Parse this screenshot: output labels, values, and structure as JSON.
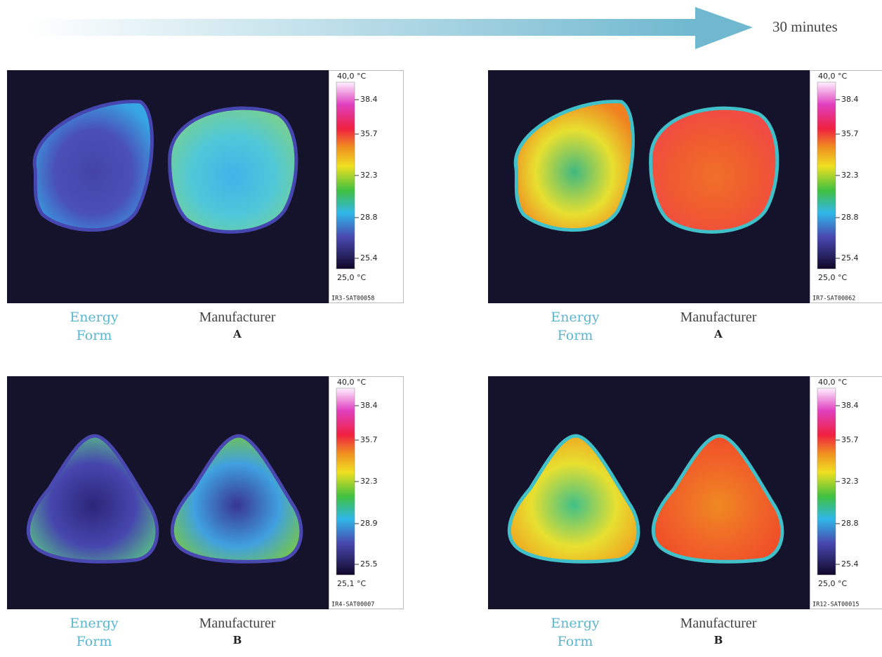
{
  "header": {
    "duration": "30 minutes"
  },
  "panels": [
    {
      "scale": {
        "max": "40,0 °C",
        "ticks": [
          "38.4",
          "35.7",
          "32.3",
          "28.8",
          "25.4"
        ],
        "min": "25,0 °C"
      },
      "image_id": "IR3-SAT00058",
      "left_label": [
        "Energy",
        "Form"
      ],
      "right_label": [
        "Manufacturer",
        "A"
      ]
    },
    {
      "scale": {
        "max": "40,0 °C",
        "ticks": [
          "38.4",
          "35.7",
          "32.3",
          "28.8",
          "25.4"
        ],
        "min": "25,0 °C"
      },
      "image_id": "IR7-SAT00062",
      "left_label": [
        "Energy",
        "Form"
      ],
      "right_label": [
        "Manufacturer",
        "A"
      ]
    },
    {
      "scale": {
        "max": "40,0 °C",
        "ticks": [
          "38.4",
          "35.7",
          "32.3",
          "28.9",
          "25.5"
        ],
        "min": "25,1 °C"
      },
      "image_id": "IR4-SAT00007",
      "left_label": [
        "Energy",
        "Form"
      ],
      "right_label": [
        "Manufacturer",
        "B"
      ]
    },
    {
      "scale": {
        "max": "40,0 °C",
        "ticks": [
          "38.4",
          "35.7",
          "32.3",
          "28.8",
          "25.4"
        ],
        "min": "25,0 °C"
      },
      "image_id": "IR12-SAT00015",
      "left_label": [
        "Energy",
        "Form"
      ],
      "right_label": [
        "Manufacturer",
        "B"
      ]
    }
  ]
}
